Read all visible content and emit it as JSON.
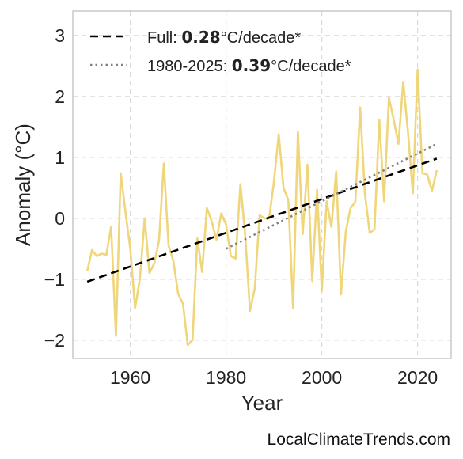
{
  "chart_data": {
    "type": "line",
    "xlabel": "Year",
    "ylabel": "Anomaly (°C)",
    "xlim": [
      1948,
      2027
    ],
    "ylim": [
      -2.3,
      3.4
    ],
    "x_ticks": [
      1960,
      1980,
      2000,
      2020
    ],
    "x_tick_labels": [
      "1960",
      "1980",
      "2000",
      "2020"
    ],
    "y_ticks": [
      -2,
      -1,
      0,
      1,
      2,
      3
    ],
    "y_tick_labels": [
      "−2",
      "−1",
      "0",
      "1",
      "2",
      "3"
    ],
    "grid": true,
    "legend_position": "top-left",
    "series": [
      {
        "color": "#f0d67a",
        "style": "solid",
        "x": [
          1951,
          1952,
          1953,
          1954,
          1955,
          1956,
          1957,
          1958,
          1959,
          1960,
          1961,
          1962,
          1963,
          1964,
          1965,
          1966,
          1967,
          1968,
          1969,
          1970,
          1971,
          1972,
          1973,
          1974,
          1975,
          1976,
          1977,
          1978,
          1979,
          1980,
          1981,
          1982,
          1983,
          1984,
          1985,
          1986,
          1987,
          1988,
          1989,
          1990,
          1991,
          1992,
          1993,
          1994,
          1995,
          1996,
          1997,
          1998,
          1999,
          2000,
          2001,
          2002,
          2003,
          2004,
          2005,
          2006,
          2007,
          2008,
          2009,
          2010,
          2011,
          2012,
          2013,
          2014,
          2015,
          2016,
          2017,
          2018,
          2019,
          2020,
          2021,
          2022,
          2023,
          2024
        ],
        "y": [
          -0.87,
          -0.52,
          -0.62,
          -0.58,
          -0.6,
          -0.14,
          -1.93,
          0.74,
          0.1,
          -0.5,
          -1.47,
          -1.0,
          0.0,
          -0.9,
          -0.74,
          -0.37,
          0.9,
          -0.45,
          -0.7,
          -1.24,
          -1.4,
          -2.08,
          -2.0,
          -0.33,
          -0.88,
          0.17,
          -0.05,
          -0.35,
          0.08,
          -0.1,
          -0.62,
          -0.66,
          0.56,
          -0.28,
          -1.52,
          -1.15,
          0.05,
          0.0,
          0.0,
          0.6,
          1.38,
          0.5,
          0.3,
          -1.48,
          1.42,
          -0.26,
          0.88,
          -1.03,
          0.47,
          -1.19,
          0.28,
          -0.14,
          0.77,
          -1.25,
          -0.22,
          0.17,
          0.27,
          1.82,
          0.4,
          -0.24,
          -0.18,
          1.62,
          0.28,
          1.98,
          1.62,
          1.22,
          2.24,
          1.4,
          0.41,
          2.44,
          0.74,
          0.72,
          0.45,
          0.79
        ]
      },
      {
        "name": "Full: 0.28°C/decade*",
        "color": "#000000",
        "style": "dashed",
        "x": [
          1951,
          2024
        ],
        "y": [
          -1.04,
          0.98
        ]
      },
      {
        "name": "1980-2025: 0.39°C/decade*",
        "color": "#808080",
        "style": "dotted",
        "x": [
          1980,
          2024
        ],
        "y": [
          -0.5,
          1.22
        ]
      }
    ]
  },
  "legend": {
    "full_prefix": "Full: ",
    "full_value": "0.28",
    "full_suffix": "°C/decade*",
    "recent_prefix": "1980-2025: ",
    "recent_value": "0.39",
    "recent_suffix": "°C/decade*"
  },
  "watermark": "LocalClimateTrends.com"
}
